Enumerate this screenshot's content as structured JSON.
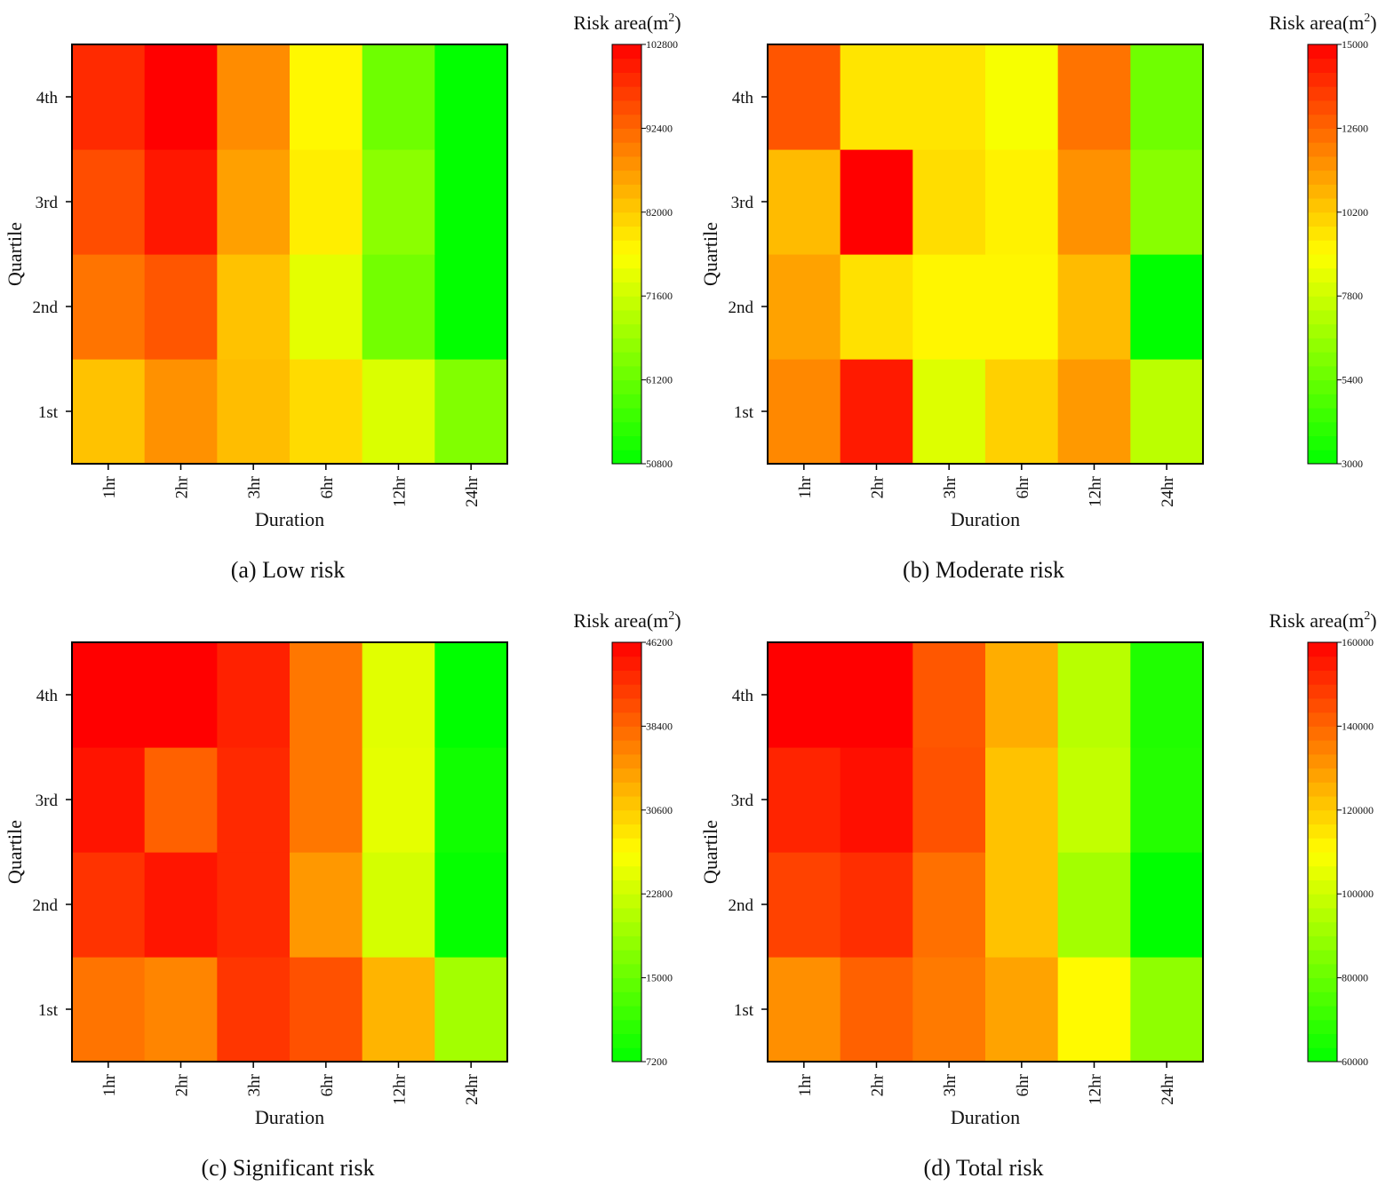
{
  "colorbar_title_prefix": "Risk area(m",
  "colorbar_title_sup": "2",
  "colorbar_title_suffix": ")",
  "scale_colors": [
    "#00ff00",
    "#ffff00",
    "#ff0000"
  ],
  "chart_data": [
    {
      "type": "heatmap",
      "caption": "(a) Low risk",
      "xlabel": "Duration",
      "ylabel": "Quartile",
      "x_categories": [
        "1hr",
        "2hr",
        "3hr",
        "6hr",
        "12hr",
        "24hr"
      ],
      "y_categories": [
        "1st",
        "2nd",
        "3rd",
        "4th"
      ],
      "values": [
        [
          83000,
          88000,
          83500,
          80500,
          73000,
          64000
        ],
        [
          91000,
          94000,
          83000,
          74000,
          62500,
          51000
        ],
        [
          95000,
          100500,
          86500,
          78500,
          65000,
          51000
        ],
        [
          98500,
          102800,
          88500,
          77500,
          62000,
          51000
        ]
      ],
      "colorbar_ticks": [
        102800,
        92400,
        82000,
        71600,
        61200,
        50800
      ],
      "zlim": [
        50800,
        102800
      ]
    },
    {
      "type": "heatmap",
      "caption": "(b) Moderate risk",
      "xlabel": "Duration",
      "ylabel": "Quartile",
      "x_categories": [
        "1hr",
        "2hr",
        "3hr",
        "6hr",
        "12hr",
        "24hr"
      ],
      "y_categories": [
        "1st",
        "2nd",
        "3rd",
        "4th"
      ],
      "values": [
        [
          11800,
          14400,
          8200,
          10100,
          11400,
          7400
        ],
        [
          11200,
          9700,
          9200,
          9200,
          10600,
          3000
        ],
        [
          10600,
          15000,
          9800,
          9300,
          11600,
          6200
        ],
        [
          13000,
          9600,
          9600,
          8800,
          12300,
          5600
        ]
      ],
      "colorbar_ticks": [
        15000,
        12600,
        10200,
        7800,
        5400,
        3000
      ],
      "zlim": [
        3000,
        15000
      ]
    },
    {
      "type": "heatmap",
      "caption": "(c) Significant risk",
      "xlabel": "Duration",
      "ylabel": "Quartile",
      "x_categories": [
        "1hr",
        "2hr",
        "3hr",
        "6hr",
        "12hr",
        "24hr"
      ],
      "y_categories": [
        "1st",
        "2nd",
        "3rd",
        "4th"
      ],
      "values": [
        [
          37300,
          36000,
          42100,
          40000,
          32400,
          19700
        ],
        [
          42300,
          44600,
          43100,
          34600,
          23400,
          7600
        ],
        [
          44700,
          38800,
          43100,
          37100,
          24700,
          8400
        ],
        [
          46200,
          46200,
          43700,
          37100,
          24400,
          7200
        ]
      ],
      "colorbar_ticks": [
        46200,
        38400,
        30600,
        22800,
        15000,
        7200
      ],
      "zlim": [
        7200,
        46200
      ]
    },
    {
      "type": "heatmap",
      "caption": "(d) Total risk",
      "xlabel": "Duration",
      "ylabel": "Quartile",
      "x_categories": [
        "1hr",
        "2hr",
        "3hr",
        "6hr",
        "12hr",
        "24hr"
      ],
      "y_categories": [
        "1st",
        "2nd",
        "3rd",
        "4th"
      ],
      "values": [
        [
          132000,
          141000,
          136000,
          128000,
          111000,
          88000
        ],
        [
          147000,
          151000,
          138000,
          122000,
          92000,
          60000
        ],
        [
          153000,
          157000,
          144000,
          122000,
          98000,
          67000
        ],
        [
          160000,
          160000,
          143000,
          126000,
          96000,
          66000
        ]
      ],
      "colorbar_ticks": [
        160000,
        140000,
        120000,
        100000,
        80000,
        60000
      ],
      "zlim": [
        60000,
        160000
      ]
    }
  ]
}
